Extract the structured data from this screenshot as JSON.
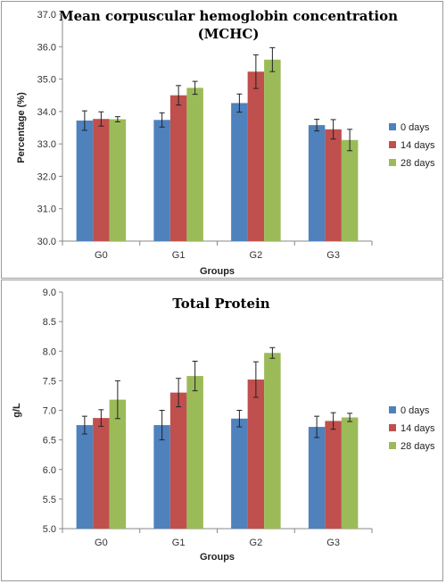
{
  "chart_data": [
    {
      "type": "bar",
      "title": "Mean corpuscular hemoglobin concentration",
      "title_line2": "(MCHC)",
      "xlabel": "Groups",
      "ylabel": "Percentage (%)",
      "ylim": [
        30.0,
        37.0
      ],
      "yticks": [
        "30.0",
        "31.0",
        "32.0",
        "33.0",
        "34.0",
        "35.0",
        "36.0",
        "37.0"
      ],
      "categories": [
        "G0",
        "G1",
        "G2",
        "G3"
      ],
      "series": [
        {
          "name": "0 days",
          "color": "#4f81bd",
          "values": [
            33.72,
            33.74,
            34.26,
            33.58
          ],
          "errors": [
            0.3,
            0.22,
            0.28,
            0.18
          ]
        },
        {
          "name": "14 days",
          "color": "#c0504d",
          "values": [
            33.77,
            34.5,
            35.23,
            33.45
          ],
          "errors": [
            0.22,
            0.3,
            0.52,
            0.3
          ]
        },
        {
          "name": "28 days",
          "color": "#9bbb59",
          "values": [
            33.76,
            34.73,
            35.6,
            33.12
          ],
          "errors": [
            0.08,
            0.2,
            0.37,
            0.33
          ]
        }
      ],
      "grid": false,
      "legend": "right"
    },
    {
      "type": "bar",
      "title": "Total Protein",
      "xlabel": "Groups",
      "ylabel": "g/L",
      "ylim": [
        5.0,
        9.0
      ],
      "yticks": [
        "5.0",
        "5.5",
        "6.0",
        "6.5",
        "7.0",
        "7.5",
        "8.0",
        "8.5",
        "9.0"
      ],
      "categories": [
        "G0",
        "G1",
        "G2",
        "G3"
      ],
      "series": [
        {
          "name": "0 days",
          "color": "#4f81bd",
          "values": [
            6.75,
            6.75,
            6.86,
            6.72
          ],
          "errors": [
            0.15,
            0.25,
            0.14,
            0.18
          ]
        },
        {
          "name": "14 days",
          "color": "#c0504d",
          "values": [
            6.87,
            7.3,
            7.52,
            6.82
          ],
          "errors": [
            0.14,
            0.24,
            0.3,
            0.14
          ]
        },
        {
          "name": "28 days",
          "color": "#9bbb59",
          "values": [
            7.18,
            7.58,
            7.97,
            6.88
          ],
          "errors": [
            0.32,
            0.25,
            0.09,
            0.07
          ]
        }
      ],
      "grid": false,
      "legend": "right"
    }
  ]
}
